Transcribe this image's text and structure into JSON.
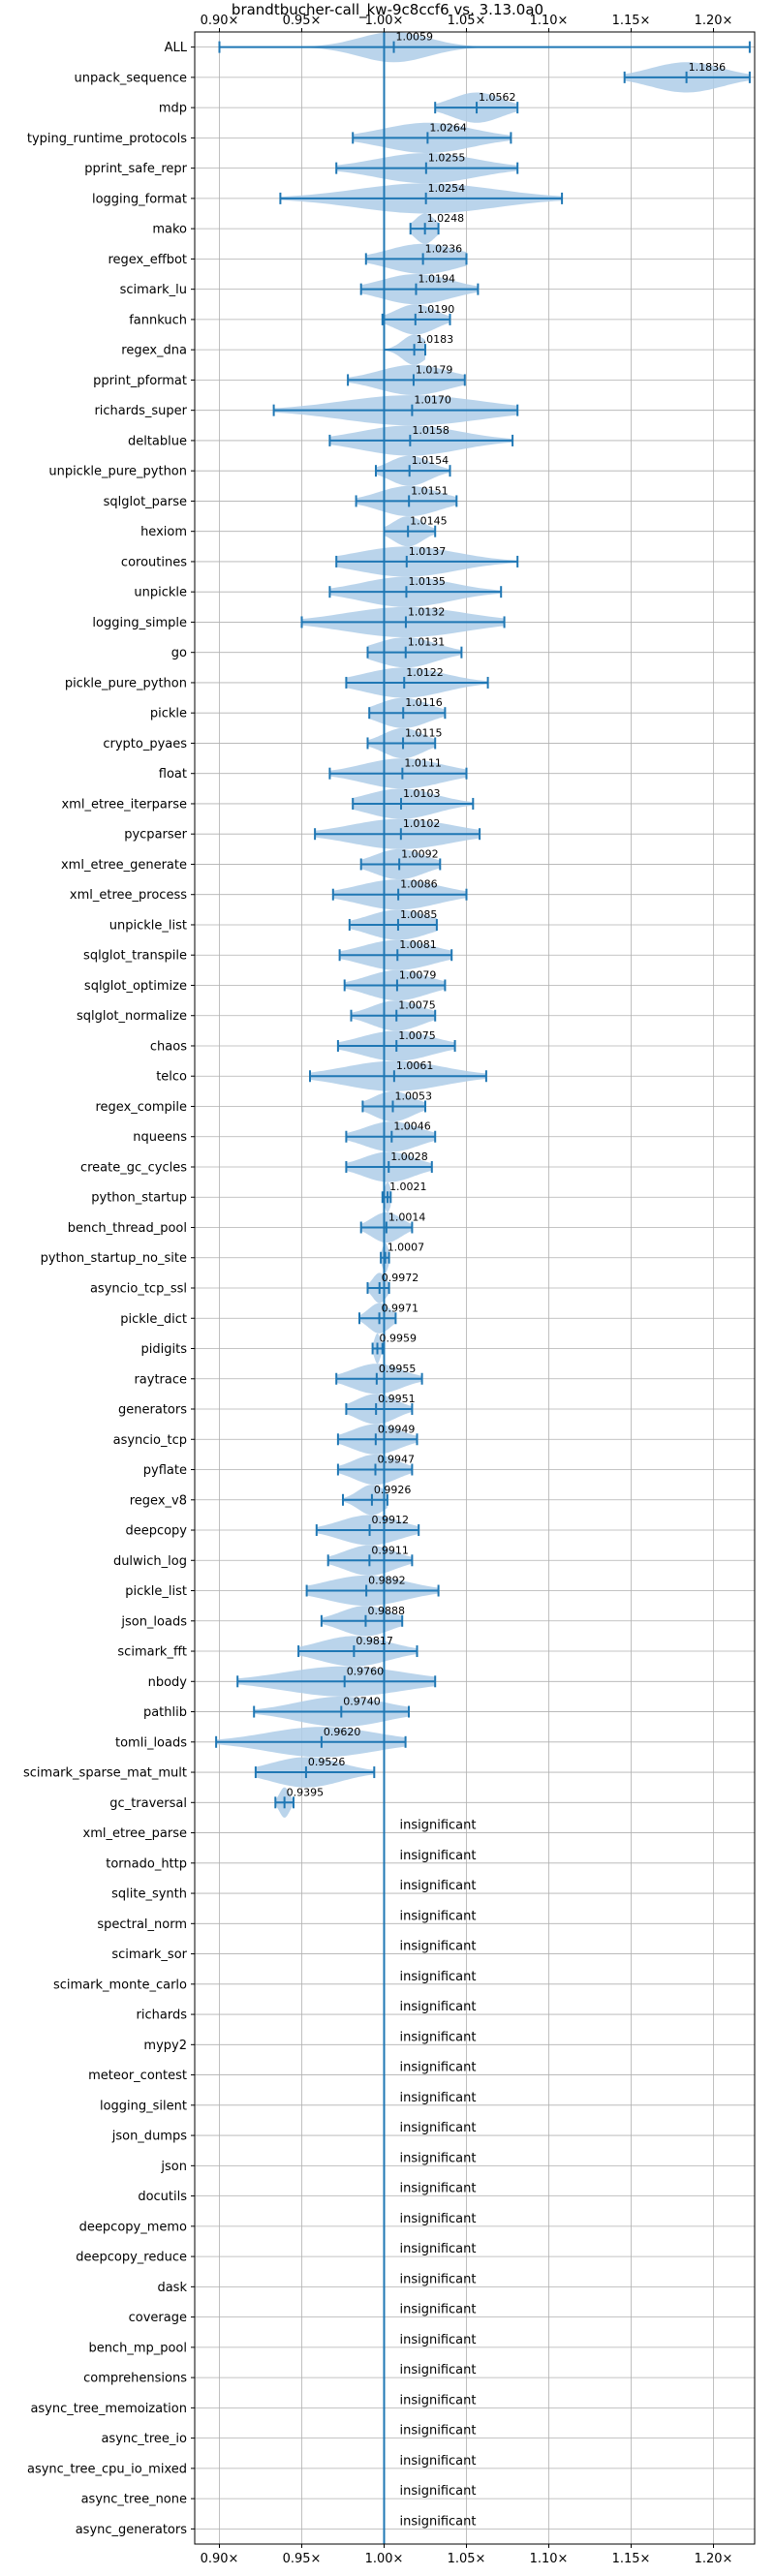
{
  "chart_data": {
    "type": "violin",
    "title": "brandtbucher-call_kw-9c8ccf6 vs. 3.13.0a0",
    "x_tick_labels": [
      "0.90×",
      "0.95×",
      "1.00×",
      "1.05×",
      "1.10×",
      "1.15×",
      "1.20×"
    ],
    "x_ticks": [
      0.9,
      0.95,
      1.0,
      1.05,
      1.1,
      1.15,
      1.2
    ],
    "xlim": [
      0.885,
      1.225
    ],
    "reference_line": 1.0,
    "grid": true,
    "colors": {
      "violin": "#aecde8",
      "line": "#1f77b4",
      "grid": "#b0b0b0"
    },
    "insignificant_label": "insignificant",
    "benchmarks": [
      {
        "name": "ALL",
        "value": 1.0059,
        "label": "1.0059",
        "min": 0.9,
        "max": 1.222,
        "spread": 0.035
      },
      {
        "name": "unpack_sequence",
        "value": 1.1836,
        "label": "1.1836",
        "min": 1.146,
        "max": 1.222,
        "spread": 0.036
      },
      {
        "name": "mdp",
        "value": 1.0562,
        "label": "1.0562",
        "min": 1.031,
        "max": 1.081,
        "spread": 0.025
      },
      {
        "name": "typing_runtime_protocols",
        "value": 1.0264,
        "label": "1.0264",
        "min": 0.981,
        "max": 1.077,
        "spread": 0.045
      },
      {
        "name": "pprint_safe_repr",
        "value": 1.0255,
        "label": "1.0255",
        "min": 0.971,
        "max": 1.081,
        "spread": 0.05
      },
      {
        "name": "logging_format",
        "value": 1.0254,
        "label": "1.0254",
        "min": 0.937,
        "max": 1.108,
        "spread": 0.07
      },
      {
        "name": "mako",
        "value": 1.0248,
        "label": "1.0248",
        "min": 1.016,
        "max": 1.033,
        "spread": 0.01
      },
      {
        "name": "regex_effbot",
        "value": 1.0236,
        "label": "1.0236",
        "min": 0.989,
        "max": 1.05,
        "spread": 0.035
      },
      {
        "name": "scimark_lu",
        "value": 1.0194,
        "label": "1.0194",
        "min": 0.986,
        "max": 1.057,
        "spread": 0.035
      },
      {
        "name": "fannkuch",
        "value": 1.019,
        "label": "1.0190",
        "min": 0.999,
        "max": 1.04,
        "spread": 0.02
      },
      {
        "name": "regex_dna",
        "value": 1.0183,
        "label": "1.0183",
        "min": 1.0,
        "max": 1.025,
        "spread": 0.012
      },
      {
        "name": "pprint_pformat",
        "value": 1.0179,
        "label": "1.0179",
        "min": 0.978,
        "max": 1.049,
        "spread": 0.035
      },
      {
        "name": "richards_super",
        "value": 1.017,
        "label": "1.0170",
        "min": 0.933,
        "max": 1.081,
        "spread": 0.07
      },
      {
        "name": "deltablue",
        "value": 1.0158,
        "label": "1.0158",
        "min": 0.967,
        "max": 1.078,
        "spread": 0.05
      },
      {
        "name": "unpickle_pure_python",
        "value": 1.0154,
        "label": "1.0154",
        "min": 0.995,
        "max": 1.04,
        "spread": 0.02
      },
      {
        "name": "sqlglot_parse",
        "value": 1.0151,
        "label": "1.0151",
        "min": 0.983,
        "max": 1.044,
        "spread": 0.03
      },
      {
        "name": "hexiom",
        "value": 1.0145,
        "label": "1.0145",
        "min": 1.0,
        "max": 1.031,
        "spread": 0.015
      },
      {
        "name": "coroutines",
        "value": 1.0137,
        "label": "1.0137",
        "min": 0.971,
        "max": 1.081,
        "spread": 0.05
      },
      {
        "name": "unpickle",
        "value": 1.0135,
        "label": "1.0135",
        "min": 0.967,
        "max": 1.071,
        "spread": 0.045
      },
      {
        "name": "logging_simple",
        "value": 1.0132,
        "label": "1.0132",
        "min": 0.95,
        "max": 1.073,
        "spread": 0.06
      },
      {
        "name": "go",
        "value": 1.0131,
        "label": "1.0131",
        "min": 0.99,
        "max": 1.047,
        "spread": 0.03
      },
      {
        "name": "pickle_pure_python",
        "value": 1.0122,
        "label": "1.0122",
        "min": 0.977,
        "max": 1.063,
        "spread": 0.04
      },
      {
        "name": "pickle",
        "value": 1.0116,
        "label": "1.0116",
        "min": 0.991,
        "max": 1.037,
        "spread": 0.025
      },
      {
        "name": "crypto_pyaes",
        "value": 1.0115,
        "label": "1.0115",
        "min": 0.99,
        "max": 1.031,
        "spread": 0.02
      },
      {
        "name": "float",
        "value": 1.0111,
        "label": "1.0111",
        "min": 0.967,
        "max": 1.05,
        "spread": 0.04
      },
      {
        "name": "xml_etree_iterparse",
        "value": 1.0103,
        "label": "1.0103",
        "min": 0.981,
        "max": 1.054,
        "spread": 0.035
      },
      {
        "name": "pycparser",
        "value": 1.0102,
        "label": "1.0102",
        "min": 0.958,
        "max": 1.058,
        "spread": 0.05
      },
      {
        "name": "xml_etree_generate",
        "value": 1.0092,
        "label": "1.0092",
        "min": 0.986,
        "max": 1.034,
        "spread": 0.025
      },
      {
        "name": "xml_etree_process",
        "value": 1.0086,
        "label": "1.0086",
        "min": 0.969,
        "max": 1.05,
        "spread": 0.04
      },
      {
        "name": "unpickle_list",
        "value": 1.0085,
        "label": "1.0085",
        "min": 0.979,
        "max": 1.032,
        "spread": 0.03
      },
      {
        "name": "sqlglot_transpile",
        "value": 1.0081,
        "label": "1.0081",
        "min": 0.973,
        "max": 1.041,
        "spread": 0.035
      },
      {
        "name": "sqlglot_optimize",
        "value": 1.0079,
        "label": "1.0079",
        "min": 0.976,
        "max": 1.037,
        "spread": 0.03
      },
      {
        "name": "sqlglot_normalize",
        "value": 1.0075,
        "label": "1.0075",
        "min": 0.98,
        "max": 1.031,
        "spread": 0.025
      },
      {
        "name": "chaos",
        "value": 1.0075,
        "label": "1.0075",
        "min": 0.972,
        "max": 1.043,
        "spread": 0.035
      },
      {
        "name": "telco",
        "value": 1.0061,
        "label": "1.0061",
        "min": 0.955,
        "max": 1.062,
        "spread": 0.05
      },
      {
        "name": "regex_compile",
        "value": 1.0053,
        "label": "1.0053",
        "min": 0.987,
        "max": 1.025,
        "spread": 0.02
      },
      {
        "name": "nqueens",
        "value": 1.0046,
        "label": "1.0046",
        "min": 0.977,
        "max": 1.031,
        "spread": 0.027
      },
      {
        "name": "create_gc_cycles",
        "value": 1.0028,
        "label": "1.0028",
        "min": 0.977,
        "max": 1.029,
        "spread": 0.026
      },
      {
        "name": "python_startup",
        "value": 1.0021,
        "label": "1.0021",
        "min": 0.999,
        "max": 1.004,
        "spread": 0.003
      },
      {
        "name": "bench_thread_pool",
        "value": 1.0014,
        "label": "1.0014",
        "min": 0.986,
        "max": 1.017,
        "spread": 0.015
      },
      {
        "name": "python_startup_no_site",
        "value": 1.0007,
        "label": "1.0007",
        "min": 0.998,
        "max": 1.003,
        "spread": 0.003
      },
      {
        "name": "asyncio_tcp_ssl",
        "value": 0.9972,
        "label": "0.9972",
        "min": 0.99,
        "max": 1.003,
        "spread": 0.007
      },
      {
        "name": "pickle_dict",
        "value": 0.9971,
        "label": "0.9971",
        "min": 0.985,
        "max": 1.007,
        "spread": 0.011
      },
      {
        "name": "pidigits",
        "value": 0.9959,
        "label": "0.9959",
        "min": 0.993,
        "max": 0.999,
        "spread": 0.003
      },
      {
        "name": "raytrace",
        "value": 0.9955,
        "label": "0.9955",
        "min": 0.971,
        "max": 1.023,
        "spread": 0.025
      },
      {
        "name": "generators",
        "value": 0.9951,
        "label": "0.9951",
        "min": 0.977,
        "max": 1.017,
        "spread": 0.02
      },
      {
        "name": "asyncio_tcp",
        "value": 0.9949,
        "label": "0.9949",
        "min": 0.972,
        "max": 1.02,
        "spread": 0.024
      },
      {
        "name": "pyflate",
        "value": 0.9947,
        "label": "0.9947",
        "min": 0.972,
        "max": 1.017,
        "spread": 0.022
      },
      {
        "name": "regex_v8",
        "value": 0.9926,
        "label": "0.9926",
        "min": 0.975,
        "max": 1.002,
        "spread": 0.014
      },
      {
        "name": "deepcopy",
        "value": 0.9912,
        "label": "0.9912",
        "min": 0.959,
        "max": 1.021,
        "spread": 0.03
      },
      {
        "name": "dulwich_log",
        "value": 0.9911,
        "label": "0.9911",
        "min": 0.966,
        "max": 1.017,
        "spread": 0.025
      },
      {
        "name": "pickle_list",
        "value": 0.9892,
        "label": "0.9892",
        "min": 0.953,
        "max": 1.033,
        "spread": 0.04
      },
      {
        "name": "json_loads",
        "value": 0.9888,
        "label": "0.9888",
        "min": 0.962,
        "max": 1.011,
        "spread": 0.025
      },
      {
        "name": "scimark_fft",
        "value": 0.9817,
        "label": "0.9817",
        "min": 0.948,
        "max": 1.02,
        "spread": 0.035
      },
      {
        "name": "nbody",
        "value": 0.976,
        "label": "0.9760",
        "min": 0.911,
        "max": 1.031,
        "spread": 0.06
      },
      {
        "name": "pathlib",
        "value": 0.974,
        "label": "0.9740",
        "min": 0.921,
        "max": 1.015,
        "spread": 0.045
      },
      {
        "name": "tomli_loads",
        "value": 0.962,
        "label": "0.9620",
        "min": 0.898,
        "max": 1.013,
        "spread": 0.055
      },
      {
        "name": "scimark_sparse_mat_mult",
        "value": 0.9526,
        "label": "0.9526",
        "min": 0.922,
        "max": 0.994,
        "spread": 0.035
      },
      {
        "name": "gc_traversal",
        "value": 0.9395,
        "label": "0.9395",
        "min": 0.934,
        "max": 0.945,
        "spread": 0.005
      },
      {
        "name": "xml_etree_parse",
        "insignificant": true
      },
      {
        "name": "tornado_http",
        "insignificant": true
      },
      {
        "name": "sqlite_synth",
        "insignificant": true
      },
      {
        "name": "spectral_norm",
        "insignificant": true
      },
      {
        "name": "scimark_sor",
        "insignificant": true
      },
      {
        "name": "scimark_monte_carlo",
        "insignificant": true
      },
      {
        "name": "richards",
        "insignificant": true
      },
      {
        "name": "mypy2",
        "insignificant": true
      },
      {
        "name": "meteor_contest",
        "insignificant": true
      },
      {
        "name": "logging_silent",
        "insignificant": true
      },
      {
        "name": "json_dumps",
        "insignificant": true
      },
      {
        "name": "json",
        "insignificant": true
      },
      {
        "name": "docutils",
        "insignificant": true
      },
      {
        "name": "deepcopy_memo",
        "insignificant": true
      },
      {
        "name": "deepcopy_reduce",
        "insignificant": true
      },
      {
        "name": "dask",
        "insignificant": true
      },
      {
        "name": "coverage",
        "insignificant": true
      },
      {
        "name": "bench_mp_pool",
        "insignificant": true
      },
      {
        "name": "comprehensions",
        "insignificant": true
      },
      {
        "name": "async_tree_memoization",
        "insignificant": true
      },
      {
        "name": "async_tree_io",
        "insignificant": true
      },
      {
        "name": "async_tree_cpu_io_mixed",
        "insignificant": true
      },
      {
        "name": "async_tree_none",
        "insignificant": true
      },
      {
        "name": "async_generators",
        "insignificant": true
      }
    ]
  }
}
